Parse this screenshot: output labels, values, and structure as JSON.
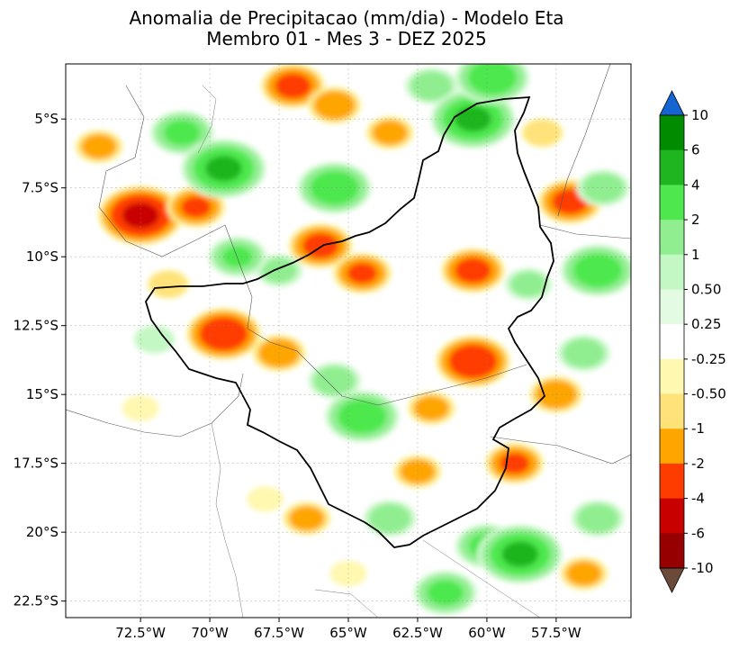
{
  "chart_data": {
    "type": "heatmap",
    "title": "Anomalia de Precipitacao (mm/dia) - Modelo Eta",
    "subtitle": "Membro 01 - Mes 3 - DEZ 2025",
    "x_ticks": [
      "72.5°W",
      "70°W",
      "67.5°W",
      "65°W",
      "62.5°W",
      "60°W",
      "57.5°W"
    ],
    "x_tick_values": [
      -72.5,
      -70,
      -67.5,
      -65,
      -62.5,
      -60,
      -57.5
    ],
    "y_ticks": [
      "5°S",
      "7.5°S",
      "10°S",
      "12.5°S",
      "15°S",
      "17.5°S",
      "20°S",
      "22.5°S"
    ],
    "y_tick_values": [
      -5,
      -7.5,
      -10,
      -12.5,
      -15,
      -17.5,
      -20,
      -22.5
    ],
    "xlim": [
      -75.2,
      -54.8
    ],
    "ylim": [
      -23.1,
      -3.0
    ],
    "grid": true,
    "colorbar": {
      "position": "right",
      "extend": "both",
      "labels": [
        "10",
        "6",
        "4",
        "2",
        "1",
        "0.50",
        "0.25",
        "-0.25",
        "-0.50",
        "-1",
        "-2",
        "-4",
        "-6",
        "-10"
      ],
      "levels": [
        10,
        6,
        4,
        2,
        1,
        0.5,
        0.25,
        -0.25,
        -0.5,
        -1,
        -2,
        -4,
        -6,
        -10
      ],
      "colors": [
        "#008c00",
        "#1fb51f",
        "#4ee84e",
        "#90ee90",
        "#c3f7c3",
        "#e3fbe3",
        "#ffffff",
        "#fff8b0",
        "#ffe27a",
        "#ffa500",
        "#ff3c00",
        "#c80000",
        "#960000"
      ],
      "over_color": "#1464d2",
      "under_color": "#6b4a3a"
    },
    "anomaly_cells": [
      {
        "lon": -72.5,
        "lat": -8.5,
        "value": -5
      },
      {
        "lon": -70.5,
        "lat": -8.2,
        "value": -2.5
      },
      {
        "lon": -74.0,
        "lat": -6.0,
        "value": -1.5
      },
      {
        "lon": -71.0,
        "lat": -5.5,
        "value": 3
      },
      {
        "lon": -69.5,
        "lat": -6.8,
        "value": 5
      },
      {
        "lon": -67.0,
        "lat": -3.8,
        "value": -3
      },
      {
        "lon": -65.5,
        "lat": -4.5,
        "value": -2
      },
      {
        "lon": -65.5,
        "lat": -7.5,
        "value": 4
      },
      {
        "lon": -63.5,
        "lat": -5.5,
        "value": -1.5
      },
      {
        "lon": -62.0,
        "lat": -3.8,
        "value": 2
      },
      {
        "lon": -60.5,
        "lat": -5.0,
        "value": 5
      },
      {
        "lon": -59.8,
        "lat": -3.5,
        "value": 4
      },
      {
        "lon": -58.0,
        "lat": -5.5,
        "value": -1
      },
      {
        "lon": -57.0,
        "lat": -8.0,
        "value": -3
      },
      {
        "lon": -55.8,
        "lat": -7.5,
        "value": 2
      },
      {
        "lon": -66.0,
        "lat": -9.6,
        "value": -3
      },
      {
        "lon": -64.5,
        "lat": -10.6,
        "value": -2.5
      },
      {
        "lon": -67.5,
        "lat": -10.5,
        "value": 1.5
      },
      {
        "lon": -69.0,
        "lat": -10.0,
        "value": 2.5
      },
      {
        "lon": -69.5,
        "lat": -12.8,
        "value": -4
      },
      {
        "lon": -67.5,
        "lat": -13.5,
        "value": -2
      },
      {
        "lon": -71.5,
        "lat": -11.0,
        "value": -1
      },
      {
        "lon": -72.0,
        "lat": -13.0,
        "value": 1
      },
      {
        "lon": -72.5,
        "lat": -15.5,
        "value": -0.5
      },
      {
        "lon": -65.5,
        "lat": -14.5,
        "value": 2
      },
      {
        "lon": -64.5,
        "lat": -15.8,
        "value": 4
      },
      {
        "lon": -62.0,
        "lat": -15.5,
        "value": -1.5
      },
      {
        "lon": -60.5,
        "lat": -13.8,
        "value": -4
      },
      {
        "lon": -60.5,
        "lat": -10.5,
        "value": -3
      },
      {
        "lon": -58.5,
        "lat": -11.0,
        "value": 1.5
      },
      {
        "lon": -56.0,
        "lat": -10.5,
        "value": 4
      },
      {
        "lon": -56.5,
        "lat": -13.5,
        "value": 2
      },
      {
        "lon": -57.5,
        "lat": -15.0,
        "value": -2
      },
      {
        "lon": -59.0,
        "lat": -17.5,
        "value": -2.5
      },
      {
        "lon": -62.5,
        "lat": -17.8,
        "value": -1.5
      },
      {
        "lon": -63.5,
        "lat": -19.5,
        "value": 2
      },
      {
        "lon": -60.0,
        "lat": -20.5,
        "value": 3
      },
      {
        "lon": -58.8,
        "lat": -20.8,
        "value": 5
      },
      {
        "lon": -56.5,
        "lat": -21.5,
        "value": -1.5
      },
      {
        "lon": -61.5,
        "lat": -22.2,
        "value": 3
      },
      {
        "lon": -68.0,
        "lat": -18.8,
        "value": -0.5
      },
      {
        "lon": -66.5,
        "lat": -19.5,
        "value": -1.5
      },
      {
        "lon": -65.0,
        "lat": -21.5,
        "value": -0.5
      },
      {
        "lon": -56.0,
        "lat": -19.5,
        "value": 2
      }
    ]
  }
}
